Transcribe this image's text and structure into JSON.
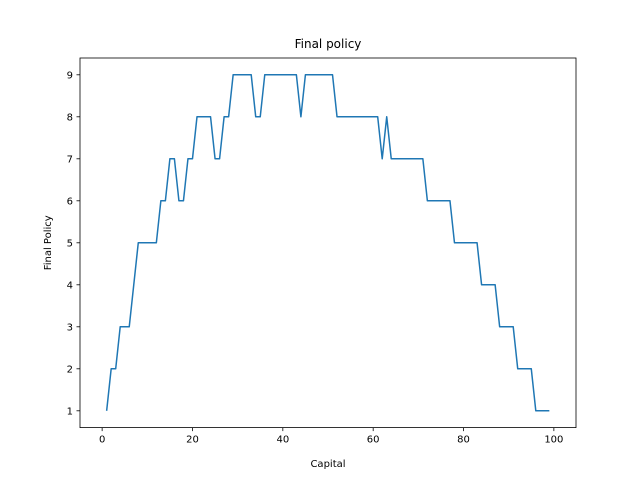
{
  "chart_data": {
    "type": "line",
    "title": "Final policy",
    "xlabel": "Capital",
    "ylabel": "Final Policy",
    "xlim": [
      -4.9,
      104.9
    ],
    "ylim": [
      0.6,
      9.4
    ],
    "xticks": [
      0,
      20,
      40,
      60,
      80,
      100
    ],
    "yticks": [
      1,
      2,
      3,
      4,
      5,
      6,
      7,
      8,
      9
    ],
    "grid": false,
    "legend": "none",
    "series": [
      {
        "color": "#1f77b4",
        "x": [
          1,
          2,
          3,
          4,
          5,
          6,
          7,
          8,
          9,
          10,
          11,
          12,
          13,
          14,
          15,
          16,
          17,
          18,
          19,
          20,
          21,
          22,
          23,
          24,
          25,
          26,
          27,
          28,
          29,
          30,
          31,
          32,
          33,
          34,
          35,
          36,
          37,
          38,
          39,
          40,
          41,
          42,
          43,
          44,
          45,
          46,
          47,
          48,
          49,
          50,
          51,
          52,
          53,
          54,
          55,
          56,
          57,
          58,
          59,
          60,
          61,
          62,
          63,
          64,
          65,
          66,
          67,
          68,
          69,
          70,
          71,
          72,
          73,
          74,
          75,
          76,
          77,
          78,
          79,
          80,
          81,
          82,
          83,
          84,
          85,
          86,
          87,
          88,
          89,
          90,
          91,
          92,
          93,
          94,
          95,
          96,
          97,
          98,
          99
        ],
        "y": [
          1,
          2,
          2,
          3,
          3,
          3,
          4,
          5,
          5,
          5,
          5,
          5,
          6,
          6,
          7,
          7,
          6,
          6,
          7,
          7,
          8,
          8,
          8,
          8,
          7,
          7,
          8,
          8,
          9,
          9,
          9,
          9,
          9,
          8,
          8,
          9,
          9,
          9,
          9,
          9,
          9,
          9,
          9,
          8,
          9,
          9,
          9,
          9,
          9,
          9,
          9,
          8,
          8,
          8,
          8,
          8,
          8,
          8,
          8,
          8,
          8,
          7,
          8,
          7,
          7,
          7,
          7,
          7,
          7,
          7,
          7,
          6,
          6,
          6,
          6,
          6,
          6,
          5,
          5,
          5,
          5,
          5,
          5,
          4,
          4,
          4,
          4,
          3,
          3,
          3,
          3,
          2,
          2,
          2,
          2,
          1,
          1,
          1,
          1
        ]
      }
    ]
  }
}
